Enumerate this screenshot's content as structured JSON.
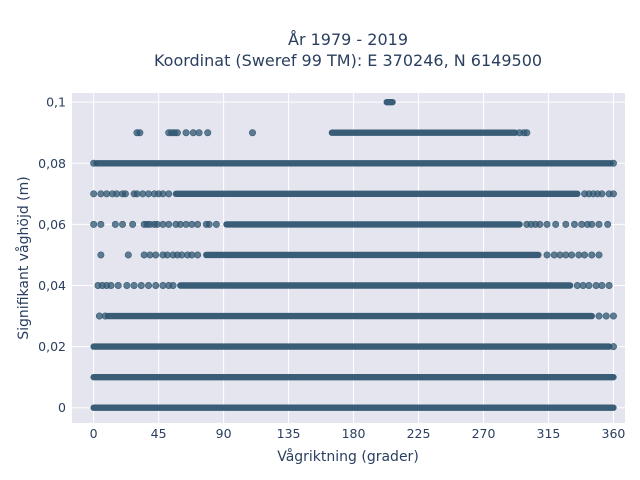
{
  "colors": {
    "plot_background": "#e5e5ef",
    "grid": "#ffffff",
    "marker": "#2f5570",
    "text": "#2a3f5f"
  },
  "chart_data": {
    "type": "scatter",
    "title": [
      "År 1979 - 2019",
      "Koordinat (Sweref 99 TM): E 370246, N 6149500"
    ],
    "xlabel": "Vågriktning (grader)",
    "ylabel": "Signifikant våghöjd (m)",
    "xlim": [
      -15,
      368
    ],
    "ylim": [
      -0.005,
      0.103
    ],
    "x_ticks": [
      0,
      45,
      90,
      135,
      180,
      225,
      270,
      315,
      360
    ],
    "x_tick_labels": [
      "0",
      "45",
      "90",
      "135",
      "180",
      "225",
      "270",
      "315",
      "360"
    ],
    "y_ticks": [
      0,
      0.02,
      0.04,
      0.06,
      0.08,
      0.1
    ],
    "y_tick_labels": [
      "0",
      "0,02",
      "0,04",
      "0,06",
      "0,08",
      "0,1"
    ],
    "grid": true,
    "marker_color": "#2f5570",
    "rows": [
      {
        "y": 0.1,
        "segments": [
          [
            203,
            207
          ]
        ],
        "points": []
      },
      {
        "y": 0.09,
        "segments": [
          [
            165,
            292
          ]
        ],
        "points": [
          30,
          32,
          52,
          54,
          56,
          58,
          64,
          69,
          73,
          79,
          110,
          295,
          298,
          300
        ]
      },
      {
        "y": 0.08,
        "segments": [
          [
            2,
            358
          ]
        ],
        "points": [
          0,
          360
        ]
      },
      {
        "y": 0.07,
        "segments": [
          [
            57,
            335
          ]
        ],
        "points": [
          0,
          5,
          9,
          13,
          16,
          20,
          22,
          28,
          30,
          34,
          38,
          42,
          45,
          48,
          52,
          340,
          343,
          346,
          349,
          352,
          357,
          360
        ]
      },
      {
        "y": 0.06,
        "segments": [
          [
            92,
            295
          ]
        ],
        "points": [
          0,
          5,
          15,
          20,
          27,
          35,
          37,
          39,
          42,
          44,
          48,
          52,
          57,
          60,
          64,
          68,
          72,
          78,
          80,
          85,
          300,
          303,
          306,
          309,
          314,
          320,
          327,
          333,
          338,
          342,
          345,
          350,
          356
        ]
      },
      {
        "y": 0.05,
        "segments": [
          [
            78,
            308
          ]
        ],
        "points": [
          5,
          24,
          35,
          39,
          43,
          48,
          51,
          55,
          58,
          61,
          65,
          68,
          72,
          314,
          319,
          323,
          327,
          331,
          336,
          340,
          345,
          350
        ]
      },
      {
        "y": 0.04,
        "segments": [
          [
            60,
            330
          ]
        ],
        "points": [
          3,
          6,
          9,
          12,
          17,
          23,
          28,
          33,
          38,
          43,
          48,
          52,
          55,
          335,
          339,
          343,
          348,
          352,
          357
        ]
      },
      {
        "y": 0.03,
        "segments": [
          [
            10,
            345
          ]
        ],
        "points": [
          4,
          8,
          350,
          355,
          360
        ]
      },
      {
        "y": 0.02,
        "segments": [
          [
            0,
            357
          ]
        ],
        "points": [
          360
        ]
      },
      {
        "y": 0.01,
        "segments": [
          [
            0,
            360
          ]
        ],
        "points": []
      },
      {
        "y": 0.0,
        "segments": [
          [
            0,
            360
          ]
        ],
        "points": []
      }
    ]
  }
}
